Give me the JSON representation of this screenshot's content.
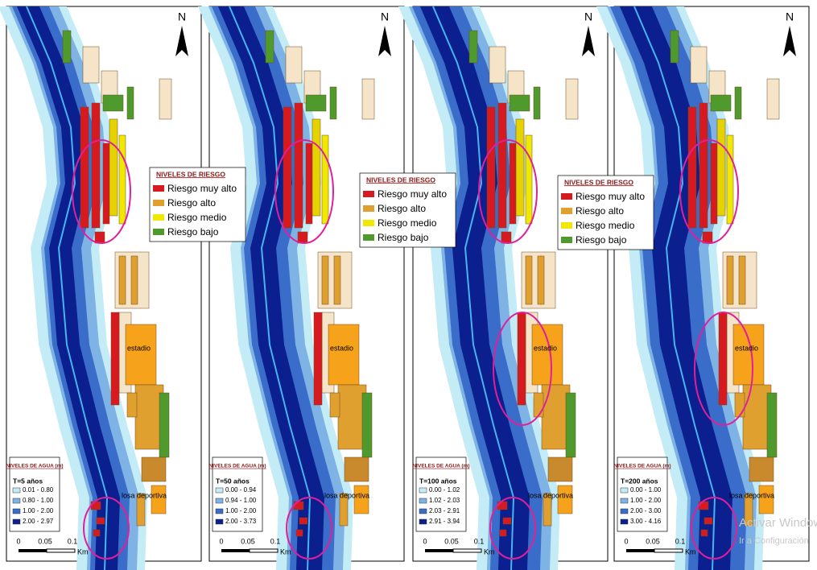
{
  "north": "N",
  "risk_legend": {
    "title": "NIVELES DE RIESGO",
    "items": [
      "Riesgo muy alto",
      "Riesgo alto",
      "Riesgo medio",
      "Riesgo bajo"
    ]
  },
  "water_legend_title": "NIVELES DE AGUA (m)",
  "scale": [
    "0",
    "0.05",
    "0.1",
    "Km"
  ],
  "labels": {
    "stadium": "estadio",
    "sports": "losa deportiva"
  },
  "watermark": [
    "Activar Windows",
    "Ir a Configuración"
  ],
  "panels": [
    {
      "period": "T=5 años",
      "ranges": [
        "0.01 - 0.80",
        "0.80 - 1.00",
        "1.00 - 2.00",
        "2.00 - 2.97"
      ]
    },
    {
      "period": "T=50 años",
      "ranges": [
        "0.00 - 0.94",
        "0.94 - 1.00",
        "1.00 - 2.00",
        "2.00 - 3.73"
      ]
    },
    {
      "period": "T=100 años",
      "ranges": [
        "0.00 - 1.02",
        "1.02 - 2.03",
        "2.03 - 2.91",
        "2.91 - 3.94"
      ]
    },
    {
      "period": "T=200 años",
      "ranges": [
        "0.00 - 1.00",
        "1.00 - 2.00",
        "2.00 - 3.00",
        "3.00 - 4.16"
      ]
    }
  ]
}
